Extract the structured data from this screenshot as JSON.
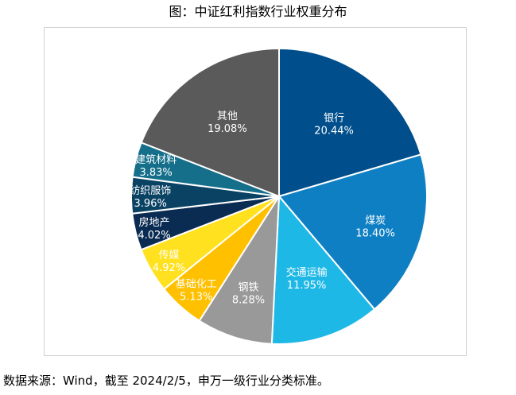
{
  "title": "图：中证红利指数行业权重分布",
  "source_note": "数据来源：Wind，截至 2024/2/5，申万一级行业分类标准。",
  "chart_data": {
    "type": "pie",
    "title": "图：中证红利指数行业权重分布",
    "slices": [
      {
        "label": "银行",
        "pct": "20.44%",
        "value": 20.44,
        "color": "#004F8C"
      },
      {
        "label": "煤炭",
        "pct": "18.40%",
        "value": 18.4,
        "color": "#0F7FC3"
      },
      {
        "label": "交通运输",
        "pct": "11.95%",
        "value": 11.95,
        "color": "#1EB8E6"
      },
      {
        "label": "钢铁",
        "pct": "8.28%",
        "value": 8.28,
        "color": "#999999"
      },
      {
        "label": "基础化工",
        "pct": "5.13%",
        "value": 5.13,
        "color": "#FFC000"
      },
      {
        "label": "传媒",
        "pct": "4.92%",
        "value": 4.92,
        "color": "#FFE11F"
      },
      {
        "label": "房地产",
        "pct": "4.02%",
        "value": 4.02,
        "color": "#0A2B52"
      },
      {
        "label": "纺织服饰",
        "pct": "3.96%",
        "value": 3.96,
        "color": "#0A4264"
      },
      {
        "label": "建筑材料",
        "pct": "3.83%",
        "value": 3.83,
        "color": "#156F8A"
      },
      {
        "label": "其他",
        "pct": "19.08%",
        "value": 19.08,
        "color": "#5A5A5A"
      }
    ]
  }
}
